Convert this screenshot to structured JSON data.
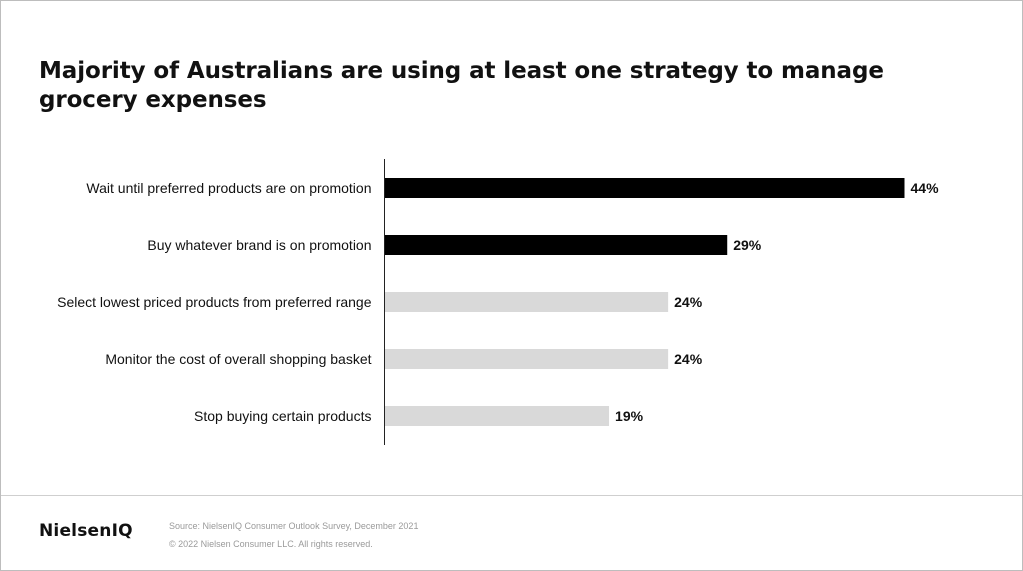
{
  "title": "Majority of Australians are using at least one strategy to manage grocery expenses",
  "chart_data": {
    "type": "bar",
    "orientation": "horizontal",
    "categories": [
      "Wait until preferred products are on promotion",
      "Buy whatever brand is on promotion",
      "Select lowest priced products from preferred range",
      "Monitor the cost of overall shopping basket",
      "Stop buying certain products"
    ],
    "values": [
      44,
      29,
      24,
      24,
      19
    ],
    "value_labels": [
      "44%",
      "29%",
      "24%",
      "24%",
      "19%"
    ],
    "bar_colors": [
      "#000000",
      "#000000",
      "#d9d9d9",
      "#d9d9d9",
      "#d9d9d9"
    ],
    "xlim": [
      0,
      44
    ],
    "grid": false,
    "legend": "none"
  },
  "footer": {
    "logo": "NielsenIQ",
    "source": "Source: NielsenIQ Consumer Outlook Survey, December 2021",
    "copyright": "© 2022 Nielsen Consumer LLC. All rights reserved."
  }
}
